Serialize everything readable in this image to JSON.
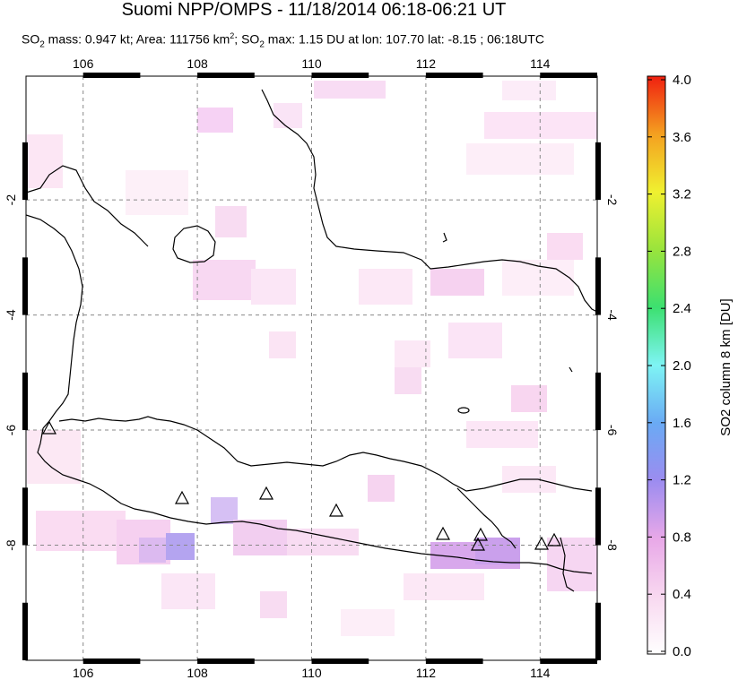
{
  "header": {
    "title": "Suomi NPP/OMPS - 11/18/2014 06:18-06:21 UT",
    "subtitle_prefix": "SO",
    "subtitle_mass": " mass: 0.947 kt; Area: 111756 km",
    "subtitle_max": "; SO",
    "subtitle_rest": " max: 1.15 DU at lon: 107.70 lat: -8.15 ; 06:18UTC"
  },
  "map": {
    "lon_range": [
      105,
      115
    ],
    "lat_range": [
      -10,
      0.15
    ],
    "lon_ticks": [
      "106",
      "108",
      "110",
      "112",
      "114"
    ],
    "lat_ticks_left": [
      "-2",
      "-4",
      "-6",
      "-8"
    ],
    "lat_ticks_right": [
      "-2",
      "-4",
      "-6",
      "-8"
    ],
    "volcano_icon": "triangle-icon"
  },
  "colorbar": {
    "label": "SO2 column 8 km [DU]",
    "ticks": [
      "4.0",
      "3.6",
      "3.2",
      "2.8",
      "2.4",
      "2.0",
      "1.6",
      "1.2",
      "0.8",
      "0.4",
      "0.0"
    ],
    "range": [
      0,
      4
    ]
  }
}
